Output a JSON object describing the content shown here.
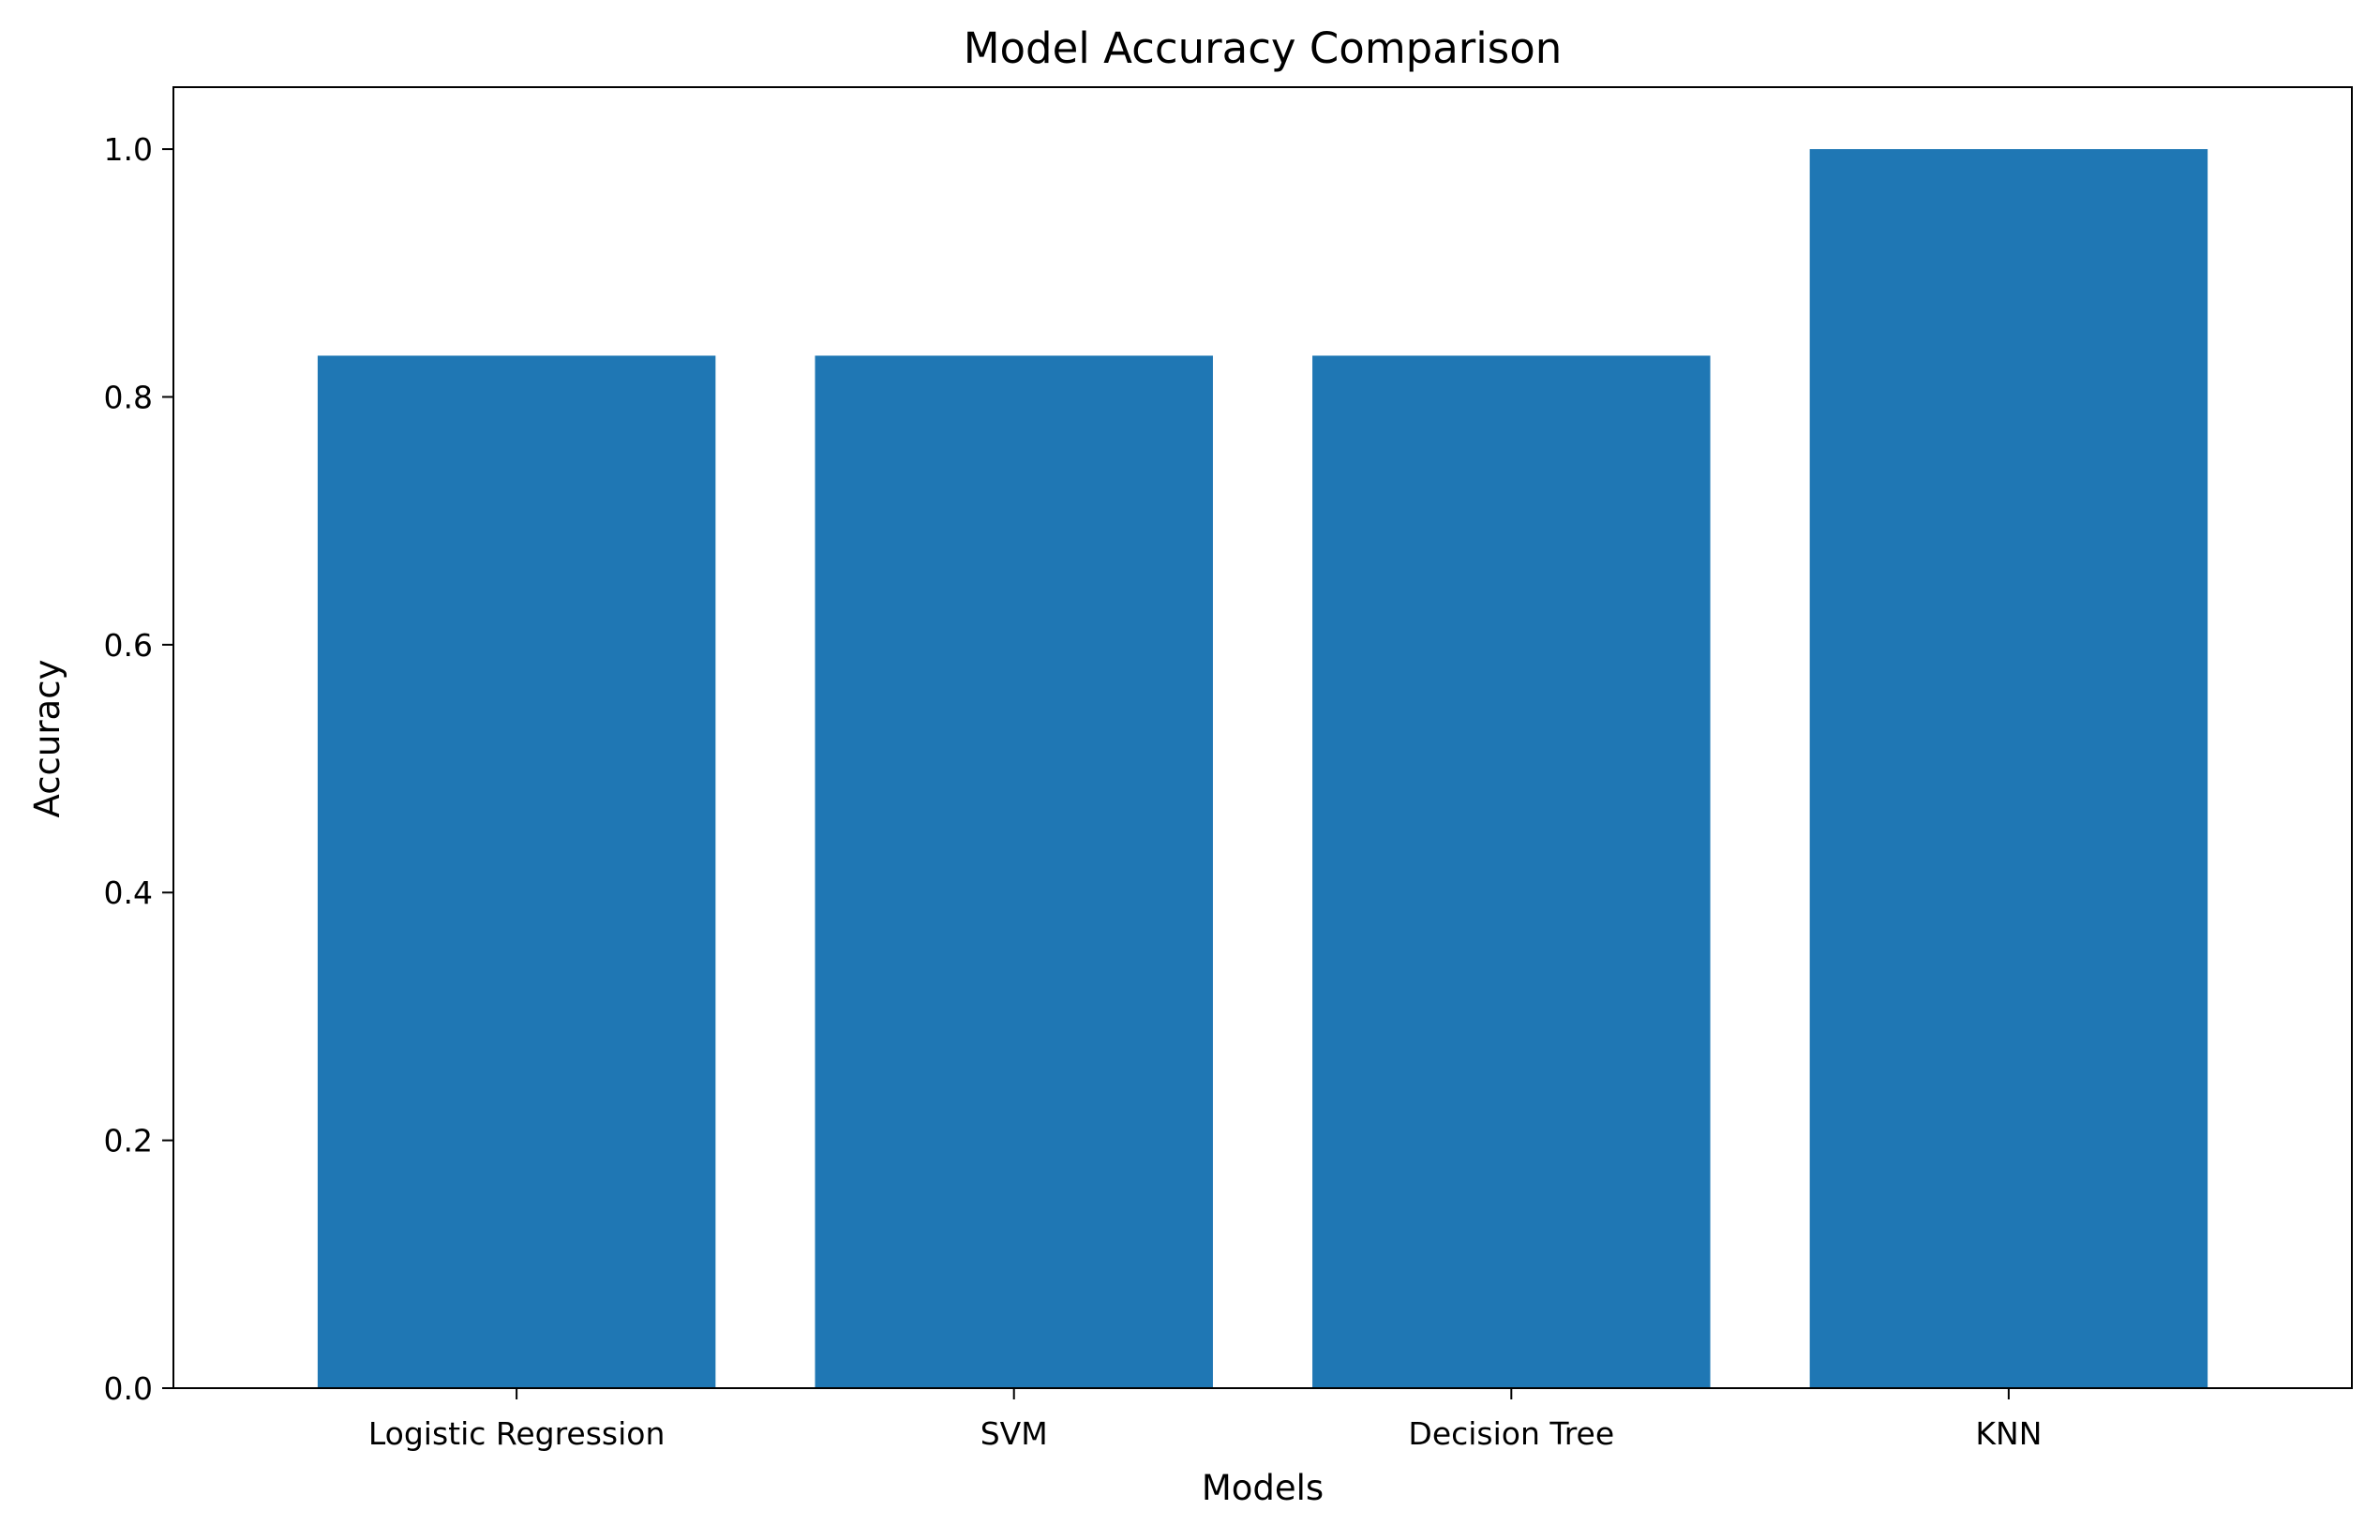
{
  "chart_data": {
    "type": "bar",
    "title": "Model Accuracy Comparison",
    "xlabel": "Models",
    "ylabel": "Accuracy",
    "categories": [
      "Logistic Regression",
      "SVM",
      "Decision Tree",
      "KNN"
    ],
    "values": [
      0.8333,
      0.8333,
      0.8333,
      1.0
    ],
    "ylim": [
      0,
      1.05
    ],
    "yticks": [
      0.0,
      0.2,
      0.4,
      0.6,
      0.8,
      1.0
    ],
    "ytick_labels": [
      "0.0",
      "0.2",
      "0.4",
      "0.6",
      "0.8",
      "1.0"
    ],
    "grid": false,
    "legend": "none",
    "colors": {
      "bar": "#1f77b4",
      "axis": "#000000",
      "background": "#ffffff"
    }
  }
}
